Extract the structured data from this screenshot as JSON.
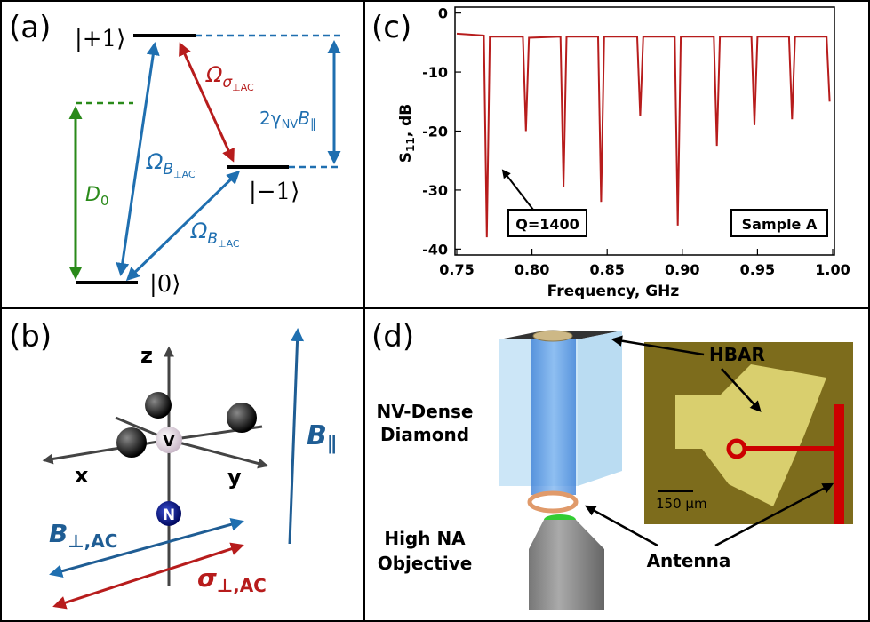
{
  "panel_a": {
    "label": "(a)",
    "state_plus": "|+1⟩",
    "state_minus": "|−1⟩",
    "state_zero": "|0⟩",
    "zero_field_splitting": {
      "base": "D",
      "sub": "0"
    },
    "rabi_sigma": {
      "base": "Ω",
      "sub": "σ",
      "subsub": "⊥AC"
    },
    "zeeman": {
      "prefix": "2γ",
      "sub": "NV",
      "base": "B",
      "sub2": "∥"
    },
    "rabi_b_upper": {
      "base": "Ω",
      "sub": "B",
      "subsub": "⊥AC"
    },
    "rabi_b_lower": {
      "base": "Ω",
      "sub": "B",
      "subsub": "⊥AC"
    }
  },
  "panel_b": {
    "label": "(b)",
    "axis_z": "z",
    "axis_x": "x",
    "axis_y": "y",
    "vacancy": "V",
    "nitrogen": "N",
    "b_parallel": {
      "base": "B",
      "sub": "∥"
    },
    "b_perp": {
      "base": "B",
      "sub": "⊥,AC"
    },
    "sigma_perp": {
      "base": "σ",
      "sub": "⊥,AC"
    }
  },
  "panel_c": {
    "label": "(c)",
    "type": "line",
    "x_label": "Frequency, GHz",
    "y_label": {
      "base": "S",
      "sub": "11",
      "suffix": ", dB"
    },
    "color": "#b71c1c",
    "x": [
      0.75,
      0.768,
      0.77,
      0.772,
      0.794,
      0.796,
      0.798,
      0.819,
      0.821,
      0.823,
      0.844,
      0.846,
      0.848,
      0.87,
      0.872,
      0.874,
      0.895,
      0.897,
      0.899,
      0.921,
      0.923,
      0.925,
      0.946,
      0.948,
      0.95,
      0.971,
      0.973,
      0.975,
      0.996,
      0.998
    ],
    "values": [
      -3.5,
      -3.8,
      -38,
      -4,
      -4,
      -20,
      -4.2,
      -4,
      -29.5,
      -4,
      -4,
      -32,
      -4,
      -4,
      -17.5,
      -4,
      -4,
      -36,
      -4,
      -4,
      -22.5,
      -4,
      -4,
      -19,
      -4,
      -4,
      -18,
      -4,
      -4,
      -15
    ],
    "xlim": [
      0.75,
      1.0
    ],
    "ylim": [
      -41,
      1
    ],
    "xticks": [
      0.75,
      {
        "value": 0.8,
        "label": "0.80"
      },
      0.85,
      {
        "value": 0.9,
        "label": "0.90"
      },
      0.95,
      {
        "value": 1.0,
        "label": "1.00"
      }
    ],
    "yticks": [
      0,
      -10,
      -20,
      -30,
      -40
    ],
    "annotations": [
      "Q=1400",
      "Sample A"
    ]
  },
  "panel_d": {
    "label": "(d)",
    "hbar": "HBAR",
    "diamond_line1": "NV-Dense",
    "diamond_line2": "Diamond",
    "objective_line1": "High NA",
    "objective_line2": "Objective",
    "antenna": "Antenna",
    "scale_bar": "150 μm"
  }
}
